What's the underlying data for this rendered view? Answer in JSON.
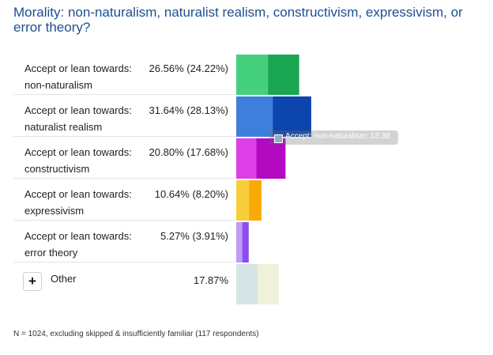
{
  "title": "Morality: non-naturalism, naturalist realism, constructivism, expressivism, or error theory?",
  "rows": [
    {
      "label_line1": "Accept or lean towards:",
      "label_line2": "non-naturalism",
      "value_text": "26.56% (24.22%)"
    },
    {
      "label_line1": "Accept or lean towards:",
      "label_line2": "naturalist realism",
      "value_text": "31.64% (28.13%)"
    },
    {
      "label_line1": "Accept or lean towards:",
      "label_line2": "constructivism",
      "value_text": "20.80% (17.68%)"
    },
    {
      "label_line1": "Accept or lean towards:",
      "label_line2": "expressivism",
      "value_text": "10.64% (8.20%)"
    },
    {
      "label_line1": "Accept or lean towards:",
      "label_line2": "error theory",
      "value_text": "5.27% (3.91%)"
    }
  ],
  "other": {
    "label": "Other",
    "value_text": "17.87%"
  },
  "tooltip": {
    "text": "Accept: non-naturalism: 13.38"
  },
  "footnote": "N = 1024, excluding skipped & insufficiently familiar (117 respondents)",
  "chart_data": {
    "type": "bar",
    "orientation": "horizontal",
    "stacked": true,
    "categories": [
      "non-naturalism",
      "naturalist realism",
      "constructivism",
      "expressivism",
      "error theory",
      "Other"
    ],
    "series": [
      {
        "name": "Accept",
        "values": [
          13.38,
          15.37,
          8.41,
          5.47,
          2.54,
          17.87
        ]
      },
      {
        "name": "Lean towards",
        "values": [
          13.18,
          16.27,
          12.39,
          5.17,
          2.73,
          0
        ]
      }
    ],
    "totals": [
      26.56,
      31.64,
      20.8,
      10.64,
      5.27,
      17.87
    ],
    "totals_parenthetical": [
      24.22,
      28.13,
      17.68,
      8.2,
      3.91,
      null
    ],
    "colors": [
      [
        "#44d07c",
        "#1aa552"
      ],
      [
        "#3f7fdc",
        "#0b45ad"
      ],
      [
        "#de3ee6",
        "#b309c1"
      ],
      [
        "#f7cd3a",
        "#f9a908"
      ],
      [
        "#bf9bf6",
        "#8c4cf2"
      ],
      [
        "#d6e4e6",
        "#eef2d9"
      ]
    ],
    "xlim": [
      0,
      32
    ],
    "legend": "none",
    "grid": false
  }
}
